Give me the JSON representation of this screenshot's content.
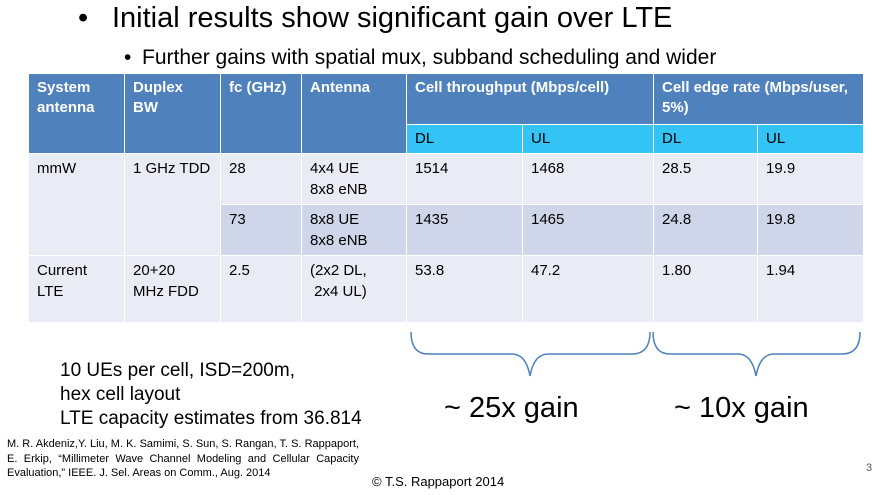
{
  "bullets": [
    {
      "marker": "•",
      "text": "Initial results show significant gain over LTE"
    },
    {
      "marker": "•",
      "text": "Further gains with spatial mux, subband scheduling and wider"
    }
  ],
  "table": {
    "headers": {
      "system_antenna": "System antenna",
      "duplex_bw": "Duplex BW",
      "fc": "fc (GHz)",
      "antenna": "Antenna",
      "cell_throughput": "Cell throughput (Mbps/cell)",
      "cell_edge_rate": "Cell edge rate (Mbps/user, 5%)"
    },
    "subheaders": {
      "tp_dl": "DL",
      "tp_ul": "UL",
      "er_dl": "DL",
      "er_ul": "UL"
    },
    "rows": [
      {
        "system": "mmW",
        "duplex": "1 GHz TDD",
        "fc": "28",
        "antenna_1": "4x4 UE",
        "antenna_2": "8x8 eNB",
        "tp_dl": "1514",
        "tp_ul": "1468",
        "er_dl": "28.5",
        "er_ul": "19.9"
      },
      {
        "fc": "73",
        "antenna_1": "8x8 UE",
        "antenna_2": "8x8 eNB",
        "tp_dl": "1435",
        "tp_ul": "1465",
        "er_dl": "24.8",
        "er_ul": "19.8"
      },
      {
        "system_1": "Current",
        "system_2": "LTE",
        "duplex_1": "20+20",
        "duplex_2": "MHz FDD",
        "fc": "2.5",
        "antenna_1": "(2x2 DL,",
        "antenna_2": " 2x4 UL)",
        "tp_dl": "53.8",
        "tp_ul": "47.2",
        "er_dl": "1.80",
        "er_ul": "1.94"
      }
    ]
  },
  "notes": [
    "10 UEs per cell, ISD=200m,",
    "hex cell layout",
    "LTE capacity estimates from 36.814"
  ],
  "gains": {
    "throughput": "~ 25x gain",
    "edge_rate": "~ 10x gain"
  },
  "citation": "M. R. Akdeniz,Y. Liu, M. K. Samimi, S. Sun, S. Rangan, T. S. Rappaport, E. Erkip, “Millimeter Wave Channel Modeling and Cellular Capacity Evaluation,” IEEE. J. Sel. Areas on Comm., Aug. 2014",
  "copyright": "© T.S. Rappaport 2014",
  "page_number": "3"
}
